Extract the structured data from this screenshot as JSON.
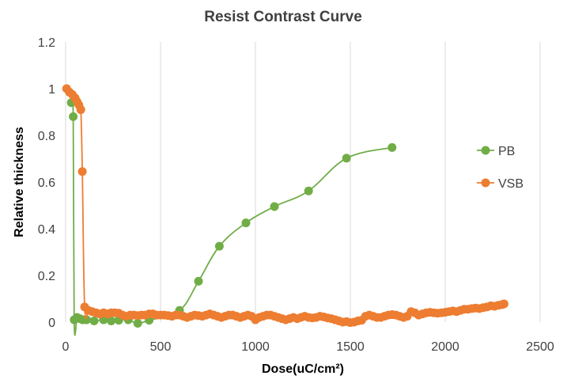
{
  "chart_data": {
    "type": "scatter",
    "title": "Resist Contrast Curve",
    "xlabel": "Dose(uC/cm²)",
    "ylabel": "Relative thickness",
    "xlim": [
      0,
      2500
    ],
    "ylim": [
      0,
      1.2
    ],
    "xticks": [
      "0",
      "500",
      "1000",
      "1500",
      "2000",
      "2500"
    ],
    "yticks": [
      "0",
      "0.2",
      "0.4",
      "0.6",
      "0.8",
      "1",
      "1.2"
    ],
    "grid": "vertical",
    "legend_position": "right",
    "series": [
      {
        "name": "PB",
        "color": "#70ad47",
        "points": [
          [
            30,
            0.94
          ],
          [
            40,
            0.88
          ],
          [
            45,
            0.01
          ],
          [
            60,
            0.02
          ],
          [
            75,
            0.015
          ],
          [
            90,
            0.01
          ],
          [
            110,
            0.01
          ],
          [
            150,
            0.005
          ],
          [
            200,
            0.01
          ],
          [
            240,
            0.005
          ],
          [
            280,
            0.008
          ],
          [
            330,
            0.01
          ],
          [
            380,
            -0.005
          ],
          [
            440,
            0.008
          ],
          [
            600,
            0.05
          ],
          [
            700,
            0.175
          ],
          [
            810,
            0.325
          ],
          [
            950,
            0.425
          ],
          [
            1100,
            0.495
          ],
          [
            1280,
            0.562
          ],
          [
            1480,
            0.702
          ],
          [
            1720,
            0.748
          ]
        ]
      },
      {
        "name": "VSB",
        "color": "#ed7d31",
        "points": [
          [
            5,
            1.0
          ],
          [
            20,
            0.985
          ],
          [
            35,
            0.975
          ],
          [
            50,
            0.96
          ],
          [
            60,
            0.945
          ],
          [
            70,
            0.93
          ],
          [
            80,
            0.91
          ],
          [
            88,
            0.645
          ],
          [
            100,
            0.065
          ],
          [
            120,
            0.05
          ],
          [
            140,
            0.045
          ],
          [
            160,
            0.04
          ],
          [
            180,
            0.035
          ],
          [
            200,
            0.04
          ],
          [
            220,
            0.035
          ],
          [
            240,
            0.04
          ],
          [
            260,
            0.04
          ],
          [
            280,
            0.038
          ],
          [
            300,
            0.03
          ],
          [
            320,
            0.025
          ],
          [
            340,
            0.03
          ],
          [
            360,
            0.03
          ],
          [
            380,
            0.028
          ],
          [
            400,
            0.03
          ],
          [
            420,
            0.03
          ],
          [
            440,
            0.035
          ],
          [
            460,
            0.035
          ],
          [
            480,
            0.03
          ],
          [
            500,
            0.03
          ],
          [
            520,
            0.03
          ],
          [
            540,
            0.028
          ],
          [
            560,
            0.025
          ],
          [
            580,
            0.03
          ],
          [
            600,
            0.03
          ],
          [
            620,
            0.025
          ],
          [
            640,
            0.02
          ],
          [
            660,
            0.025
          ],
          [
            680,
            0.03
          ],
          [
            700,
            0.028
          ],
          [
            720,
            0.025
          ],
          [
            740,
            0.03
          ],
          [
            760,
            0.035
          ],
          [
            780,
            0.03
          ],
          [
            800,
            0.025
          ],
          [
            820,
            0.02
          ],
          [
            840,
            0.025
          ],
          [
            860,
            0.03
          ],
          [
            880,
            0.03
          ],
          [
            900,
            0.025
          ],
          [
            920,
            0.02
          ],
          [
            940,
            0.025
          ],
          [
            960,
            0.03
          ],
          [
            980,
            0.025
          ],
          [
            1000,
            0.01
          ],
          [
            1020,
            0.02
          ],
          [
            1040,
            0.025
          ],
          [
            1060,
            0.03
          ],
          [
            1080,
            0.03
          ],
          [
            1100,
            0.025
          ],
          [
            1120,
            0.02
          ],
          [
            1140,
            0.015
          ],
          [
            1160,
            0.01
          ],
          [
            1180,
            0.015
          ],
          [
            1200,
            0.02
          ],
          [
            1220,
            0.015
          ],
          [
            1240,
            0.02
          ],
          [
            1260,
            0.025
          ],
          [
            1280,
            0.02
          ],
          [
            1300,
            0.018
          ],
          [
            1320,
            0.02
          ],
          [
            1340,
            0.025
          ],
          [
            1360,
            0.022
          ],
          [
            1380,
            0.018
          ],
          [
            1400,
            0.015
          ],
          [
            1420,
            0.01
          ],
          [
            1440,
            0.005
          ],
          [
            1460,
            0.0
          ],
          [
            1480,
            0.002
          ],
          [
            1500,
            -0.002
          ],
          [
            1520,
            0.0
          ],
          [
            1540,
            0.005
          ],
          [
            1560,
            0.008
          ],
          [
            1580,
            0.025
          ],
          [
            1600,
            0.03
          ],
          [
            1620,
            0.025
          ],
          [
            1640,
            0.02
          ],
          [
            1660,
            0.02
          ],
          [
            1680,
            0.025
          ],
          [
            1700,
            0.03
          ],
          [
            1720,
            0.032
          ],
          [
            1740,
            0.03
          ],
          [
            1760,
            0.025
          ],
          [
            1780,
            0.02
          ],
          [
            1800,
            0.025
          ],
          [
            1820,
            0.045
          ],
          [
            1840,
            0.04
          ],
          [
            1860,
            0.03
          ],
          [
            1880,
            0.035
          ],
          [
            1900,
            0.04
          ],
          [
            1920,
            0.042
          ],
          [
            1940,
            0.04
          ],
          [
            1960,
            0.038
          ],
          [
            1980,
            0.04
          ],
          [
            2000,
            0.042
          ],
          [
            2020,
            0.045
          ],
          [
            2040,
            0.048
          ],
          [
            2060,
            0.045
          ],
          [
            2080,
            0.05
          ],
          [
            2100,
            0.055
          ],
          [
            2120,
            0.055
          ],
          [
            2140,
            0.058
          ],
          [
            2160,
            0.06
          ],
          [
            2180,
            0.058
          ],
          [
            2200,
            0.062
          ],
          [
            2220,
            0.065
          ],
          [
            2240,
            0.07
          ],
          [
            2260,
            0.068
          ],
          [
            2280,
            0.072
          ],
          [
            2300,
            0.075
          ],
          [
            2310,
            0.078
          ]
        ]
      }
    ]
  }
}
